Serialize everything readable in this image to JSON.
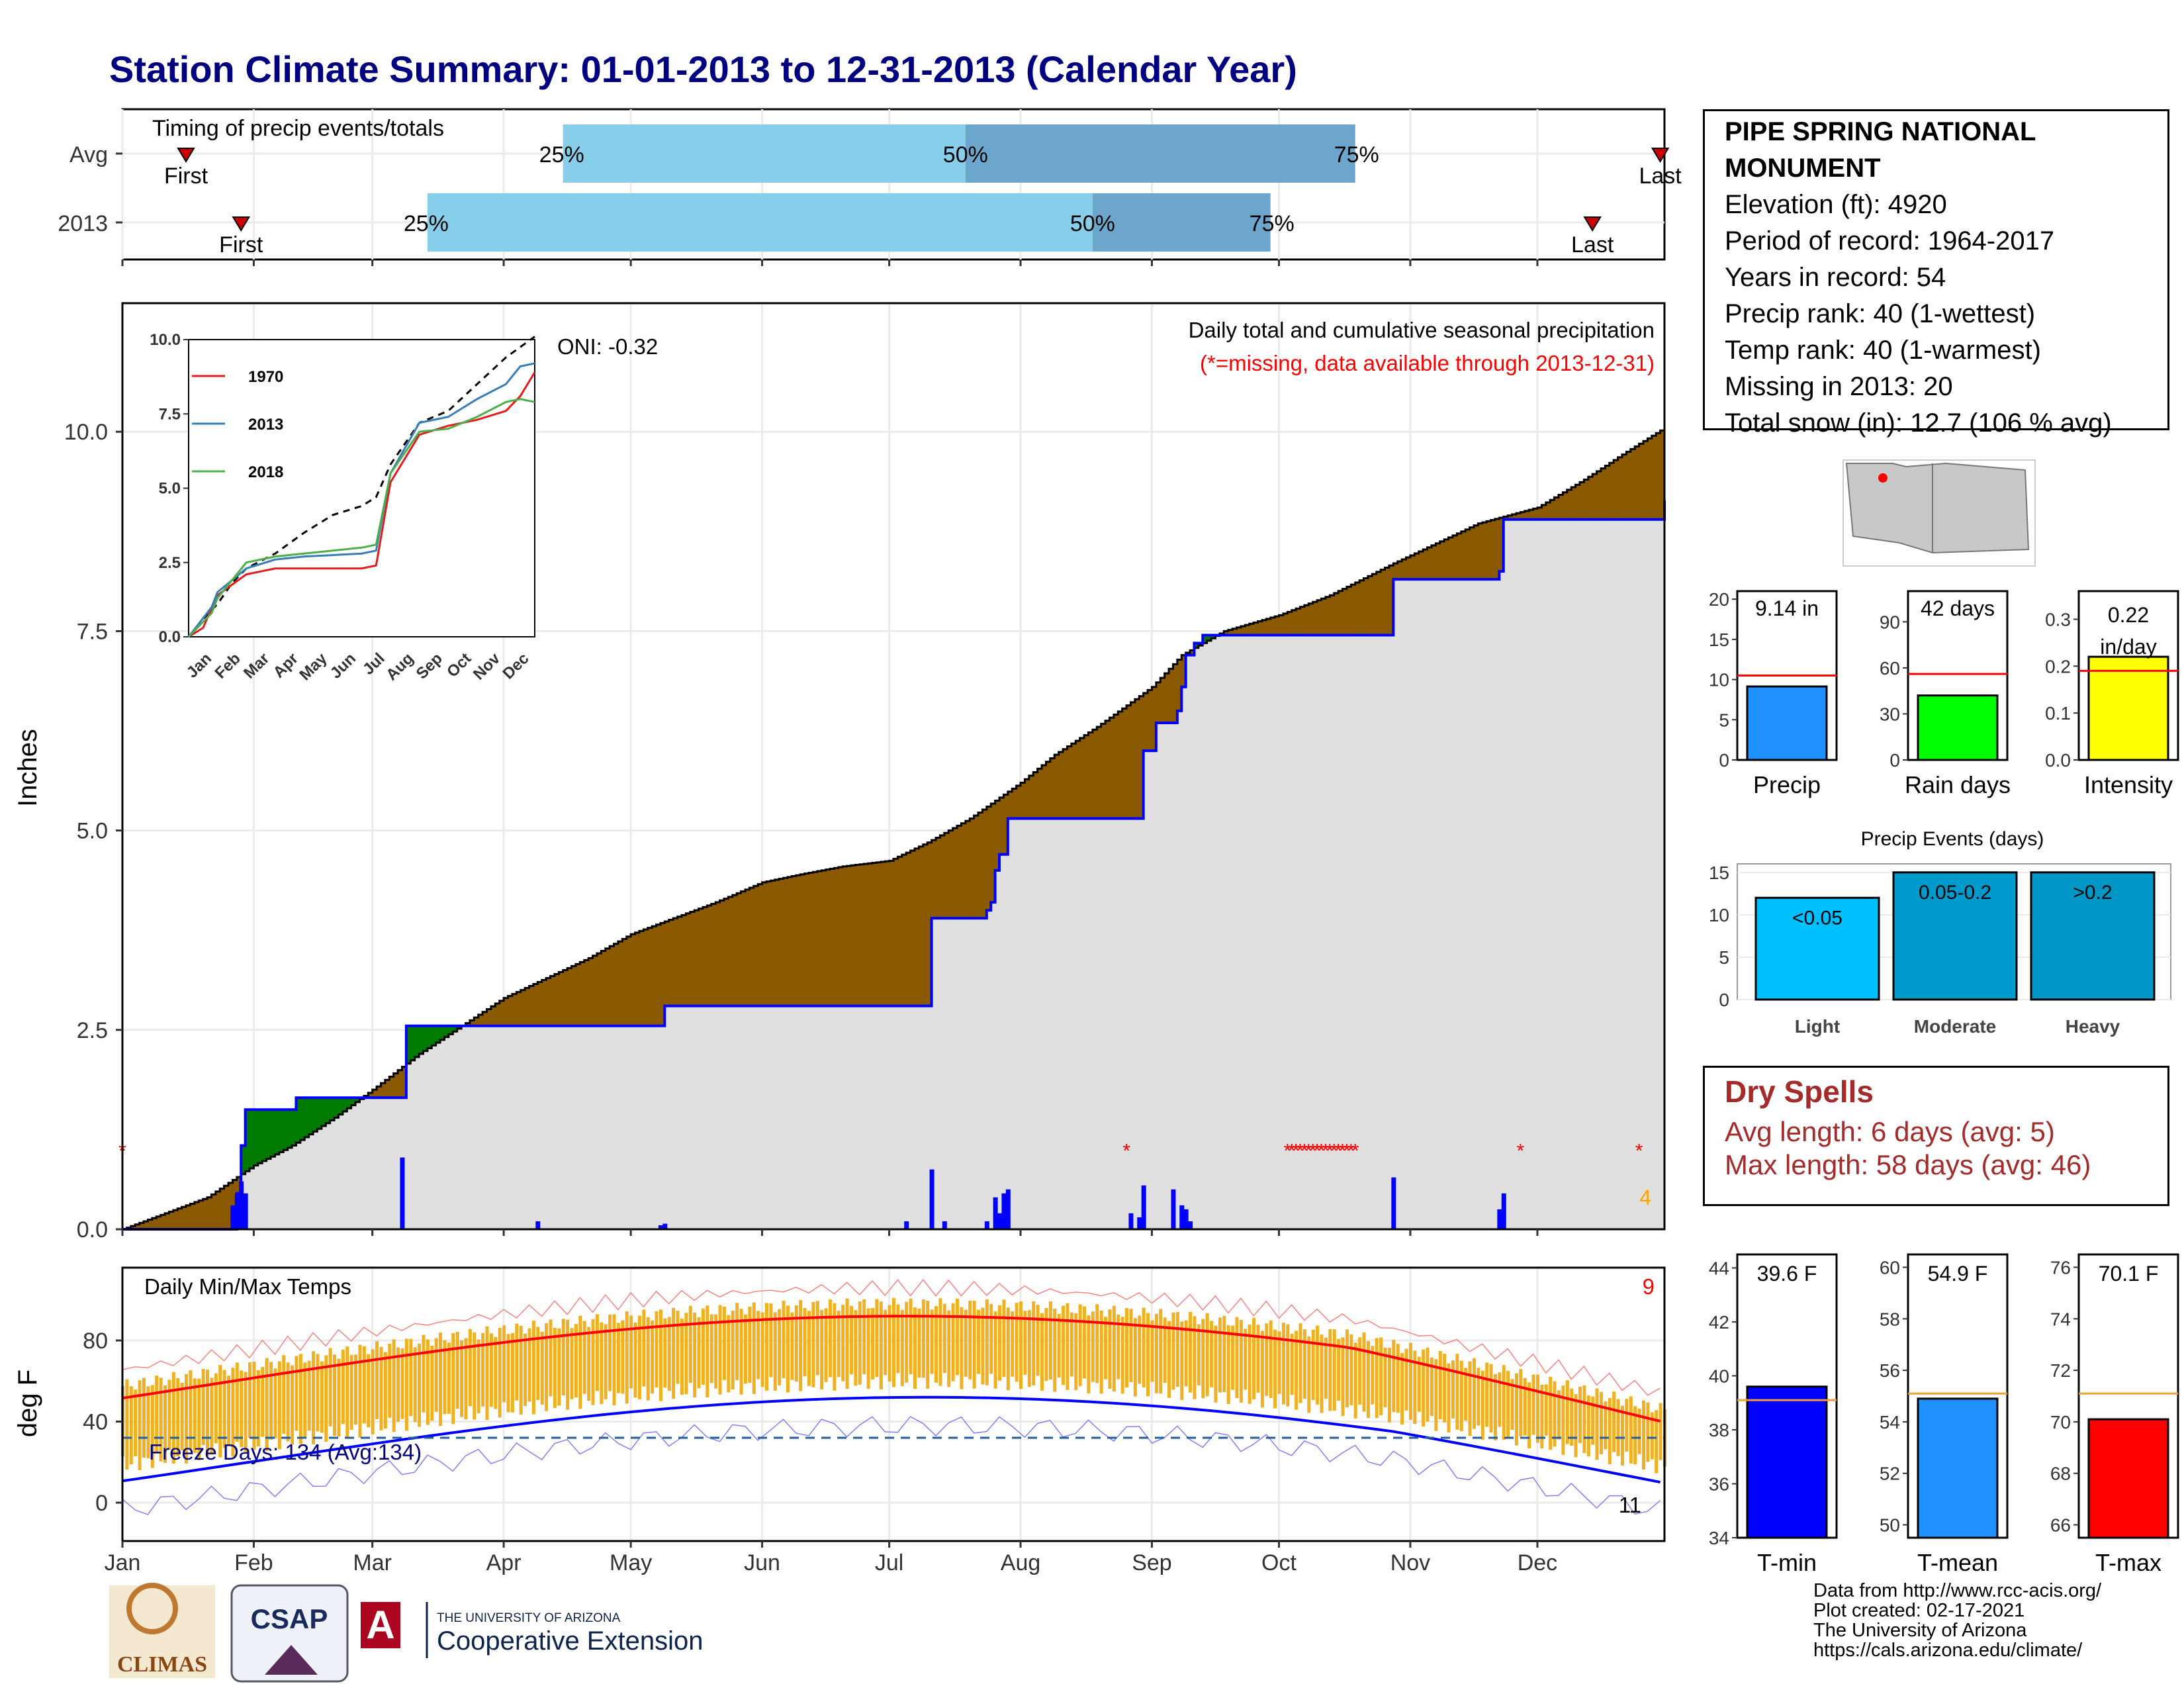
{
  "title": "Station Climate Summary: 01-01-2013 to 12-31-2013 (Calendar Year)",
  "colors": {
    "title": "#000080",
    "brown": "#8b5a00",
    "green": "#007b00",
    "blue": "#0000ff",
    "red": "#ff0000",
    "temp_bar": "#f0b020",
    "light_blue": "#87ceeb",
    "mid_blue": "#6ca6cd",
    "grey": "#e0e0e0",
    "freeze_line": "#1f5fa0"
  },
  "station": {
    "name": "PIPE SPRING NATIONAL MONUMENT",
    "elevation": "Elevation (ft): 4920",
    "period": "Period of record: 1964-2017",
    "years": "Years in record: 54",
    "precip_rank": "Precip rank: 40 (1-wettest)",
    "temp_rank": "Temp rank: 40 (1-warmest)",
    "missing": "Missing in 2013: 20",
    "snow": "Total snow (in): 12.7 (106 % avg)"
  },
  "months": [
    "Jan",
    "Feb",
    "Mar",
    "Apr",
    "May",
    "Jun",
    "Jul",
    "Aug",
    "Sep",
    "Oct",
    "Nov",
    "Dec"
  ],
  "timing": {
    "title": "Timing of precip events/totals",
    "rows": [
      {
        "label": "Avg",
        "first": 15,
        "q25": 104,
        "q50": 199,
        "q75": 291,
        "last": 363
      },
      {
        "label": "2013",
        "first": 28,
        "q25": 72,
        "q50": 229,
        "q75": 271,
        "last": 347
      }
    ],
    "first_label": "First",
    "last_label": "Last",
    "p25": "25%",
    "p50": "50%",
    "p75": "75%"
  },
  "precip": {
    "title": "Daily total and cumulative seasonal precipitation",
    "subtitle": "(*=missing, data available through 2013-12-31)",
    "ylabel": "Inches",
    "oni": "ONI: -0.32",
    "count_label": "4",
    "yticks": [
      "0.0",
      "2.5",
      "5.0",
      "7.5",
      "10.0"
    ],
    "avg_cum": [
      [
        0,
        0
      ],
      [
        10,
        0.2
      ],
      [
        20,
        0.4
      ],
      [
        31,
        0.8
      ],
      [
        40,
        1.05
      ],
      [
        50,
        1.4
      ],
      [
        59,
        1.75
      ],
      [
        70,
        2.2
      ],
      [
        80,
        2.55
      ],
      [
        90,
        2.9
      ],
      [
        100,
        3.15
      ],
      [
        110,
        3.4
      ],
      [
        120,
        3.7
      ],
      [
        130,
        3.9
      ],
      [
        140,
        4.1
      ],
      [
        151,
        4.35
      ],
      [
        160,
        4.45
      ],
      [
        170,
        4.55
      ],
      [
        181,
        4.62
      ],
      [
        190,
        4.85
      ],
      [
        200,
        5.15
      ],
      [
        212,
        5.6
      ],
      [
        220,
        5.95
      ],
      [
        230,
        6.3
      ],
      [
        243,
        6.8
      ],
      [
        250,
        7.2
      ],
      [
        260,
        7.5
      ],
      [
        273,
        7.7
      ],
      [
        285,
        7.95
      ],
      [
        300,
        8.35
      ],
      [
        310,
        8.6
      ],
      [
        320,
        8.85
      ],
      [
        334,
        9.05
      ],
      [
        345,
        9.4
      ],
      [
        355,
        9.75
      ],
      [
        364,
        10.05
      ]
    ],
    "obs_cum": [
      [
        0,
        0
      ],
      [
        25,
        0
      ],
      [
        27,
        0.45
      ],
      [
        28,
        1.05
      ],
      [
        29,
        1.5
      ],
      [
        40,
        1.5
      ],
      [
        41,
        1.65
      ],
      [
        50,
        1.65
      ],
      [
        66,
        1.65
      ],
      [
        67,
        2.55
      ],
      [
        95,
        2.55
      ],
      [
        127,
        2.55
      ],
      [
        128,
        2.8
      ],
      [
        181,
        2.8
      ],
      [
        190,
        2.8
      ],
      [
        191,
        3.9
      ],
      [
        204,
        4.0
      ],
      [
        205,
        4.1
      ],
      [
        206,
        4.5
      ],
      [
        207,
        4.7
      ],
      [
        209,
        5.15
      ],
      [
        230,
        5.15
      ],
      [
        231,
        5.15
      ],
      [
        240,
        5.15
      ],
      [
        241,
        6.0
      ],
      [
        244,
        6.35
      ],
      [
        248,
        6.35
      ],
      [
        249,
        6.5
      ],
      [
        250,
        6.8
      ],
      [
        251,
        7.2
      ],
      [
        253,
        7.35
      ],
      [
        255,
        7.45
      ],
      [
        299,
        7.45
      ],
      [
        300,
        8.15
      ],
      [
        324,
        8.15
      ],
      [
        325,
        8.25
      ],
      [
        326,
        8.9
      ],
      [
        340,
        8.9
      ],
      [
        364,
        9.14
      ]
    ],
    "daily": [
      [
        26,
        0.3
      ],
      [
        27,
        0.45
      ],
      [
        28,
        0.6
      ],
      [
        29,
        0.45
      ],
      [
        66,
        0.9
      ],
      [
        98,
        0.1
      ],
      [
        127,
        0.05
      ],
      [
        128,
        0.07
      ],
      [
        185,
        0.1
      ],
      [
        191,
        0.75
      ],
      [
        194,
        0.1
      ],
      [
        204,
        0.1
      ],
      [
        206,
        0.4
      ],
      [
        207,
        0.2
      ],
      [
        208,
        0.45
      ],
      [
        209,
        0.5
      ],
      [
        238,
        0.2
      ],
      [
        240,
        0.15
      ],
      [
        241,
        0.55
      ],
      [
        248,
        0.5
      ],
      [
        250,
        0.3
      ],
      [
        251,
        0.25
      ],
      [
        252,
        0.1
      ],
      [
        300,
        0.65
      ],
      [
        325,
        0.25
      ],
      [
        326,
        0.45
      ]
    ],
    "missing": [
      0,
      237,
      275,
      276,
      277,
      278,
      279,
      280,
      281,
      282,
      283,
      284,
      285,
      286,
      287,
      288,
      289,
      290,
      291,
      330,
      358
    ]
  },
  "inset": {
    "series": [
      {
        "name": "1970",
        "color": "#e41a1c"
      },
      {
        "name": "2013",
        "color": "#377eb8"
      },
      {
        "name": "2018",
        "color": "#4daf4a"
      }
    ],
    "yticks": [
      "0.0",
      "2.5",
      "5.0",
      "7.5",
      "10.0"
    ],
    "xticks": [
      "Jan",
      "Feb",
      "Mar",
      "Apr",
      "May",
      "Jun",
      "Jul",
      "Aug",
      "Sep",
      "Oct",
      "Nov",
      "Dec"
    ]
  },
  "bars_precip": {
    "value": "9.14 in",
    "avg": 10.5,
    "val": 9.14,
    "ymax": 21,
    "yticks": [
      "0",
      "5",
      "10",
      "15",
      "20"
    ],
    "label": "Precip",
    "color": "#1e90ff"
  },
  "bars_raindays": {
    "value": "42 days",
    "avg": 56,
    "val": 42,
    "ymax": 110,
    "yticks": [
      "0",
      "30",
      "60",
      "90"
    ],
    "label": "Rain days",
    "color": "#00ff00"
  },
  "bars_intensity": {
    "value1": "0.22",
    "value2": "in/day",
    "avg": 0.19,
    "val": 0.22,
    "ymax": 0.36,
    "yticks": [
      "0.0",
      "0.1",
      "0.2",
      "0.3"
    ],
    "label": "Intensity",
    "color": "#ffff00"
  },
  "events": {
    "title": "Precip Events (days)",
    "yticks": [
      "0",
      "5",
      "10",
      "15"
    ],
    "bars": [
      {
        "label": "Light",
        "value": 12,
        "text": "<0.05",
        "color": "#00bfff"
      },
      {
        "label": "Moderate",
        "value": 15,
        "text": "0.05-0.2",
        "color": "#009acd"
      },
      {
        "label": "Heavy",
        "value": 15,
        "text": ">0.2",
        "color": "#0096c8"
      }
    ]
  },
  "dry": {
    "title": "Dry Spells",
    "avg": "Avg length: 6 days (avg: 5)",
    "max": "Max length: 58 days (avg: 46)"
  },
  "temps": {
    "title": "Daily Min/Max Temps",
    "ylabel": "deg F",
    "freeze": "Freeze Days: 134 (Avg:134)",
    "count_hi": "9",
    "count_lo": "11",
    "yticks": [
      "0",
      "40",
      "80"
    ]
  },
  "tbars": [
    {
      "value": "39.6 F",
      "val": 39.6,
      "avg": 39.1,
      "ymin": 34,
      "ymax": 44.5,
      "yticks": [
        "34",
        "36",
        "38",
        "40",
        "42",
        "44"
      ],
      "label": "T-min",
      "color": "#0000ff"
    },
    {
      "value": "54.9 F",
      "val": 54.9,
      "avg": 55.1,
      "ymin": 49.5,
      "ymax": 60.5,
      "yticks": [
        "50",
        "52",
        "54",
        "56",
        "58",
        "60"
      ],
      "label": "T-mean",
      "color": "#1e90ff"
    },
    {
      "value": "70.1 F",
      "val": 70.1,
      "avg": 71.1,
      "ymin": 65.5,
      "ymax": 76.5,
      "yticks": [
        "66",
        "68",
        "70",
        "72",
        "74",
        "76"
      ],
      "label": "T-max",
      "color": "#ff0000"
    }
  ],
  "credits": [
    "Data from http://www.rcc-acis.org/",
    "Plot created: 02-17-2021",
    "The University of Arizona",
    "https://cals.arizona.edu/climate/"
  ],
  "logos": {
    "climas": "CLIMAS",
    "csap": "CSAP",
    "ua_small": "THE UNIVERSITY OF ARIZONA",
    "ua_big": "Cooperative Extension"
  }
}
